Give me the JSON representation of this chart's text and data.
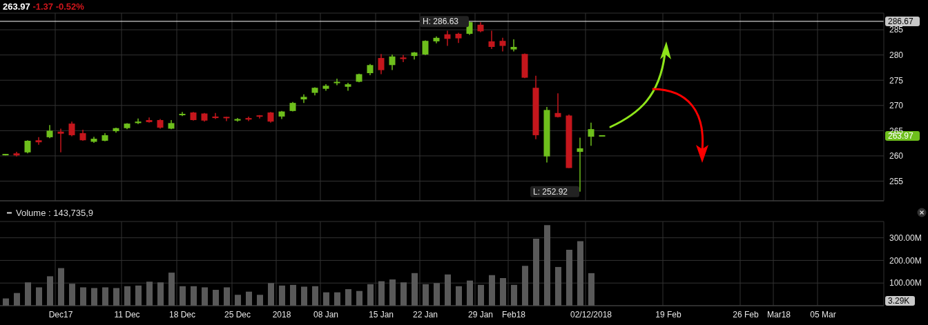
{
  "chart_data": [
    {
      "type": "candlestick",
      "title": "263.97",
      "subtitle": "-1.37 -0.52%",
      "categories": [
        null,
        null,
        null,
        null,
        null,
        null,
        null,
        null,
        null,
        null,
        null,
        null,
        null,
        null,
        null,
        null,
        null,
        null,
        null,
        null,
        null,
        null,
        null,
        null,
        null,
        null,
        null,
        null,
        null,
        null,
        null,
        null,
        null,
        null,
        null,
        null,
        null,
        null,
        null,
        null,
        null,
        null,
        null,
        null,
        null,
        null,
        null,
        null,
        null,
        null,
        null,
        null,
        null,
        null,
        null,
        null,
        null,
        null,
        null,
        null,
        null,
        null,
        null,
        null,
        null,
        null,
        null,
        null,
        null,
        null,
        null,
        null,
        null,
        null,
        null,
        null,
        null,
        null,
        null,
        null
      ],
      "ohlc": [
        [
          260.2,
          260.4,
          260.1,
          260.3
        ],
        [
          260.5,
          260.8,
          259.9,
          260.1
        ],
        [
          260.7,
          263.1,
          260.5,
          263.0
        ],
        [
          263.1,
          263.7,
          262.2,
          262.7
        ],
        [
          263.7,
          266.1,
          263.5,
          265.0
        ],
        [
          264.8,
          265.4,
          260.7,
          264.4
        ],
        [
          266.4,
          266.8,
          263.9,
          264.1
        ],
        [
          264.5,
          265.2,
          263.0,
          263.1
        ],
        [
          262.8,
          263.8,
          262.6,
          263.4
        ],
        [
          263.0,
          264.5,
          262.9,
          264.1
        ],
        [
          264.9,
          265.6,
          264.6,
          265.5
        ],
        [
          265.5,
          266.5,
          265.3,
          266.4
        ],
        [
          266.5,
          267.4,
          266.3,
          266.8
        ],
        [
          267.1,
          267.6,
          266.6,
          266.7
        ],
        [
          267.1,
          267.3,
          265.4,
          265.6
        ],
        [
          265.4,
          267.1,
          265.3,
          266.5
        ],
        [
          268.1,
          268.7,
          267.9,
          268.3
        ],
        [
          268.6,
          268.7,
          267.0,
          267.1
        ],
        [
          268.4,
          268.5,
          266.8,
          267.0
        ],
        [
          267.8,
          268.5,
          267.3,
          267.5
        ],
        [
          267.7,
          267.8,
          266.9,
          267.5
        ],
        [
          267.0,
          267.5,
          266.8,
          267.3
        ],
        [
          267.5,
          267.8,
          266.9,
          267.2
        ],
        [
          268.0,
          268.1,
          267.4,
          267.8
        ],
        [
          268.6,
          268.7,
          266.6,
          266.8
        ],
        [
          267.8,
          268.9,
          267.3,
          268.8
        ],
        [
          268.9,
          270.7,
          268.8,
          270.5
        ],
        [
          271.2,
          272.2,
          270.5,
          271.7
        ],
        [
          272.5,
          273.6,
          272.0,
          273.5
        ],
        [
          273.3,
          274.2,
          272.9,
          273.9
        ],
        [
          274.5,
          275.3,
          274.0,
          274.6
        ],
        [
          273.7,
          274.5,
          272.9,
          274.2
        ],
        [
          274.7,
          276.3,
          274.6,
          276.2
        ],
        [
          276.4,
          278.2,
          276.0,
          278.0
        ],
        [
          279.4,
          280.2,
          276.2,
          277.0
        ],
        [
          278.0,
          280.1,
          277.0,
          279.7
        ],
        [
          279.5,
          280.0,
          278.6,
          279.2
        ],
        [
          279.8,
          280.6,
          279.1,
          280.5
        ],
        [
          280.1,
          282.9,
          280.0,
          282.8
        ],
        [
          282.7,
          283.7,
          282.3,
          283.4
        ],
        [
          284.1,
          284.8,
          281.8,
          283.2
        ],
        [
          284.2,
          284.4,
          282.4,
          283.3
        ],
        [
          284.2,
          286.63,
          284.0,
          286.5
        ],
        [
          286.0,
          286.5,
          284.5,
          284.7
        ],
        [
          282.7,
          284.8,
          281.2,
          281.6
        ],
        [
          282.8,
          283.4,
          280.7,
          281.8
        ],
        [
          281.1,
          283.1,
          280.7,
          281.6
        ],
        [
          280.2,
          280.3,
          275.4,
          275.5
        ],
        [
          273.5,
          275.9,
          263.3,
          264.1
        ],
        [
          259.9,
          269.7,
          258.7,
          269.1
        ],
        [
          268.5,
          272.4,
          267.6,
          267.7
        ],
        [
          268.0,
          268.2,
          257.6,
          257.6
        ],
        [
          260.8,
          263.6,
          252.92,
          261.5
        ],
        [
          263.8,
          266.6,
          262.0,
          265.3
        ],
        [
          263.97,
          263.97,
          263.97,
          263.97
        ],
        null,
        null,
        null,
        null,
        null,
        null,
        null,
        null,
        null,
        null,
        null,
        null,
        null,
        null,
        null,
        null,
        null,
        null,
        null,
        null,
        null,
        null,
        null,
        null,
        null
      ],
      "colors": [
        "#6ebf1c",
        "#c4161c",
        "#6ebf1c",
        "#c4161c",
        "#6ebf1c",
        "#c4161c",
        "#c4161c",
        "#c4161c",
        "#6ebf1c",
        "#6ebf1c",
        "#6ebf1c",
        "#6ebf1c",
        "#6ebf1c",
        "#c4161c",
        "#c4161c",
        "#6ebf1c",
        "#6ebf1c",
        "#c4161c",
        "#c4161c",
        "#c4161c",
        "#c4161c",
        "#6ebf1c",
        "#c4161c",
        "#c4161c",
        "#c4161c",
        "#6ebf1c",
        "#6ebf1c",
        "#6ebf1c",
        "#6ebf1c",
        "#6ebf1c",
        "#6ebf1c",
        "#6ebf1c",
        "#6ebf1c",
        "#6ebf1c",
        "#c4161c",
        "#6ebf1c",
        "#c4161c",
        "#6ebf1c",
        "#6ebf1c",
        "#6ebf1c",
        "#c4161c",
        "#c4161c",
        "#6ebf1c",
        "#c4161c",
        "#c4161c",
        "#c4161c",
        "#6ebf1c",
        "#c4161c",
        "#c4161c",
        "#6ebf1c",
        "#c4161c",
        "#c4161c",
        "#6ebf1c",
        "#6ebf1c",
        "#6ebf1c",
        null,
        null,
        null,
        null,
        null,
        null,
        null,
        null,
        null,
        null,
        null,
        null,
        null,
        null,
        null,
        null,
        null,
        null,
        null,
        null,
        null,
        null,
        null,
        null,
        null
      ],
      "ylim": [
        251.1,
        288.3
      ],
      "yticks": [
        255,
        260,
        265,
        270,
        275,
        280,
        285
      ],
      "grid": true,
      "tick_labels": "y",
      "ref_lines": [
        {
          "axis": "y",
          "value": 286.67,
          "label": "286.67",
          "color": "#ffffff"
        }
      ],
      "annotations": [
        {
          "text": "H: 286.63",
          "y": 286.63
        },
        "L: 252.92",
        "263.97"
      ]
    },
    {
      "type": "bar",
      "title": "Volume : 143,735,9",
      "categories": [
        null,
        null,
        null,
        null,
        null,
        "Dec17",
        null,
        null,
        null,
        null,
        null,
        "11 Dec",
        null,
        null,
        null,
        null,
        "18 Dec",
        null,
        null,
        null,
        null,
        "25 Dec",
        null,
        null,
        null,
        "2018",
        null,
        null,
        null,
        "08 Jan",
        null,
        null,
        null,
        null,
        "15 Jan",
        null,
        null,
        null,
        "22 Jan",
        null,
        null,
        null,
        null,
        "29 Jan",
        null,
        null,
        "Feb18",
        null,
        null,
        null,
        null,
        null,
        null,
        "02/12/2018",
        null,
        null,
        null,
        null,
        null,
        null,
        "19 Feb",
        null,
        null,
        null,
        null,
        null,
        null,
        "26 Feb",
        null,
        null,
        "Mar18",
        null,
        null,
        null,
        "05 Mar",
        null,
        null,
        null,
        null,
        null
      ],
      "values": [
        32,
        56,
        103,
        81,
        130,
        166,
        97,
        81,
        78,
        81,
        78,
        86,
        89,
        106,
        103,
        146,
        86,
        86,
        81,
        70,
        81,
        48,
        62,
        48,
        100,
        89,
        92,
        84,
        86,
        59,
        59,
        73,
        65,
        95,
        108,
        116,
        103,
        144,
        95,
        100,
        138,
        86,
        111,
        92,
        135,
        122,
        92,
        176,
        296,
        356,
        171,
        247,
        285,
        143.7,
        0.00329,
        null,
        null,
        null,
        null,
        null,
        null,
        null,
        null,
        null,
        null,
        null,
        null,
        null,
        null,
        null,
        null,
        null,
        null,
        null,
        null,
        null,
        null,
        null,
        null,
        null
      ],
      "color": "#595959",
      "ylim": [
        0,
        372
      ],
      "yticks": [
        {
          "value": 100,
          "label": "100.00M"
        },
        {
          "value": 200,
          "label": "200.00M"
        },
        {
          "value": 300,
          "label": "300.00M"
        }
      ],
      "grid": true,
      "annotations": [
        "3.29K"
      ]
    }
  ]
}
